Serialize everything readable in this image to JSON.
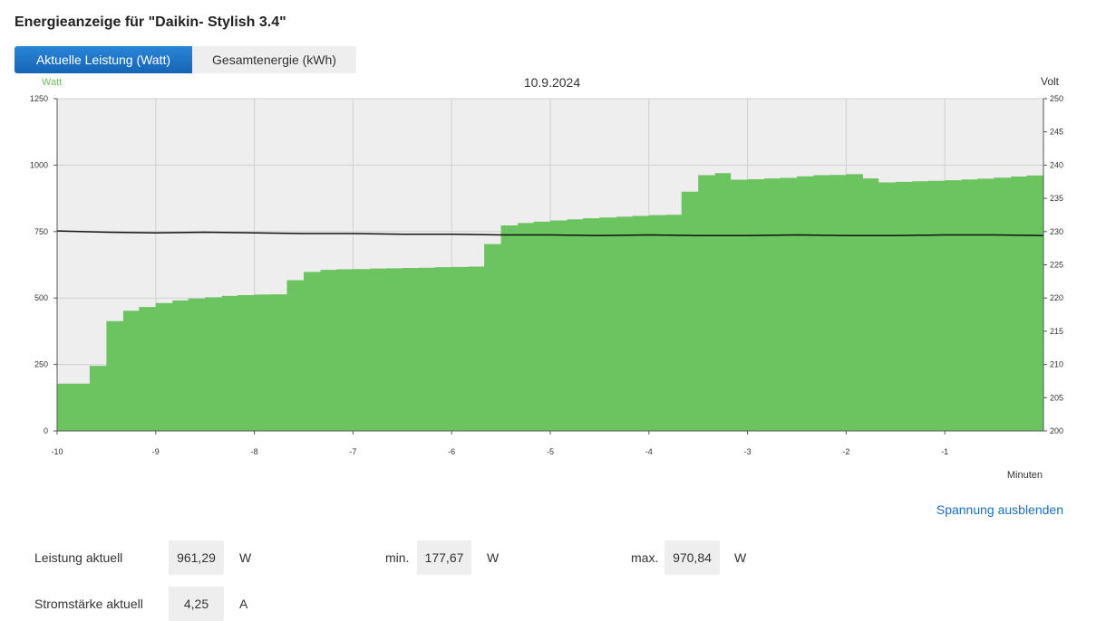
{
  "page": {
    "title": "Energieanzeige für \"Daikin- Stylish 3.4\""
  },
  "tabs": [
    {
      "label": "Aktuelle Leistung (Watt)",
      "active": true
    },
    {
      "label": "Gesamtenergie (kWh)",
      "active": false
    }
  ],
  "colors": {
    "area": "#6cc461",
    "plot_bg": "#eeeeee",
    "accent": "#1a6fc1",
    "watt_label": "#6cc461",
    "voltage_line": "#111111"
  },
  "chart_data": {
    "type": "area",
    "title": "10.9.2024",
    "ylabel_left": "Watt",
    "ylabel_right": "Volt",
    "xlabel": "Minuten",
    "xlim": [
      -10,
      0
    ],
    "ylim_left": [
      0,
      1250
    ],
    "ylim_right": [
      200,
      250
    ],
    "x_ticks": [
      "-10",
      "-9",
      "-8",
      "-7",
      "-6",
      "-5",
      "-4",
      "-3",
      "-2",
      "-1"
    ],
    "y_ticks_left": [
      "0",
      "250",
      "500",
      "750",
      "1000",
      "1250"
    ],
    "y_ticks_right": [
      "200",
      "205",
      "210",
      "215",
      "220",
      "225",
      "230",
      "235",
      "240",
      "245",
      "250"
    ],
    "grid": true,
    "power_series": {
      "name": "Leistung",
      "x": [
        -10,
        -9.67,
        -9.5,
        -9.33,
        -9.17,
        -9.0,
        -8.83,
        -8.67,
        -8.5,
        -8.33,
        -8.17,
        -8.0,
        -7.83,
        -7.67,
        -7.5,
        -7.33,
        -7.17,
        -7.0,
        -6.83,
        -6.67,
        -6.5,
        -6.33,
        -6.17,
        -6.0,
        -5.83,
        -5.67,
        -5.5,
        -5.33,
        -5.17,
        -5.0,
        -4.83,
        -4.67,
        -4.5,
        -4.33,
        -4.17,
        -4.0,
        -3.83,
        -3.67,
        -3.5,
        -3.33,
        -3.17,
        -3.0,
        -2.83,
        -2.67,
        -2.5,
        -2.33,
        -2.17,
        -2.0,
        -1.83,
        -1.67,
        -1.5,
        -1.33,
        -1.17,
        -1.0,
        -0.83,
        -0.67,
        -0.5,
        -0.33,
        -0.17
      ],
      "values": [
        178,
        245,
        413,
        452,
        466,
        481,
        491,
        498,
        503,
        508,
        511,
        513,
        514,
        567,
        598,
        606,
        608,
        609,
        611,
        612,
        613,
        614,
        616,
        617,
        618,
        703,
        773,
        782,
        787,
        792,
        796,
        800,
        803,
        806,
        809,
        812,
        813,
        900,
        962,
        970,
        945,
        947,
        950,
        952,
        958,
        962,
        963,
        966,
        950,
        935,
        937,
        939,
        941,
        943,
        946,
        949,
        953,
        957,
        961
      ]
    },
    "voltage_series": {
      "name": "Spannung",
      "x": [
        -10,
        -9.5,
        -9,
        -8.5,
        -8,
        -7.5,
        -7,
        -6.5,
        -6,
        -5.5,
        -5,
        -4.5,
        -4,
        -3.5,
        -3,
        -2.5,
        -2,
        -1.5,
        -1,
        -0.5,
        0
      ],
      "values": [
        230.1,
        229.9,
        229.8,
        229.9,
        229.8,
        229.7,
        229.7,
        229.6,
        229.6,
        229.5,
        229.5,
        229.4,
        229.5,
        229.4,
        229.4,
        229.5,
        229.4,
        229.4,
        229.5,
        229.5,
        229.4
      ]
    }
  },
  "toggle_voltage": "Spannung ausblenden",
  "stats": {
    "power_label": "Leistung aktuell",
    "power_value": "961,29",
    "power_unit": "W",
    "min_label": "min.",
    "min_value": "177,67",
    "min_unit": "W",
    "max_label": "max.",
    "max_value": "970,84",
    "max_unit": "W",
    "current_label": "Stromstärke aktuell",
    "current_value": "4,25",
    "current_unit": "A"
  }
}
